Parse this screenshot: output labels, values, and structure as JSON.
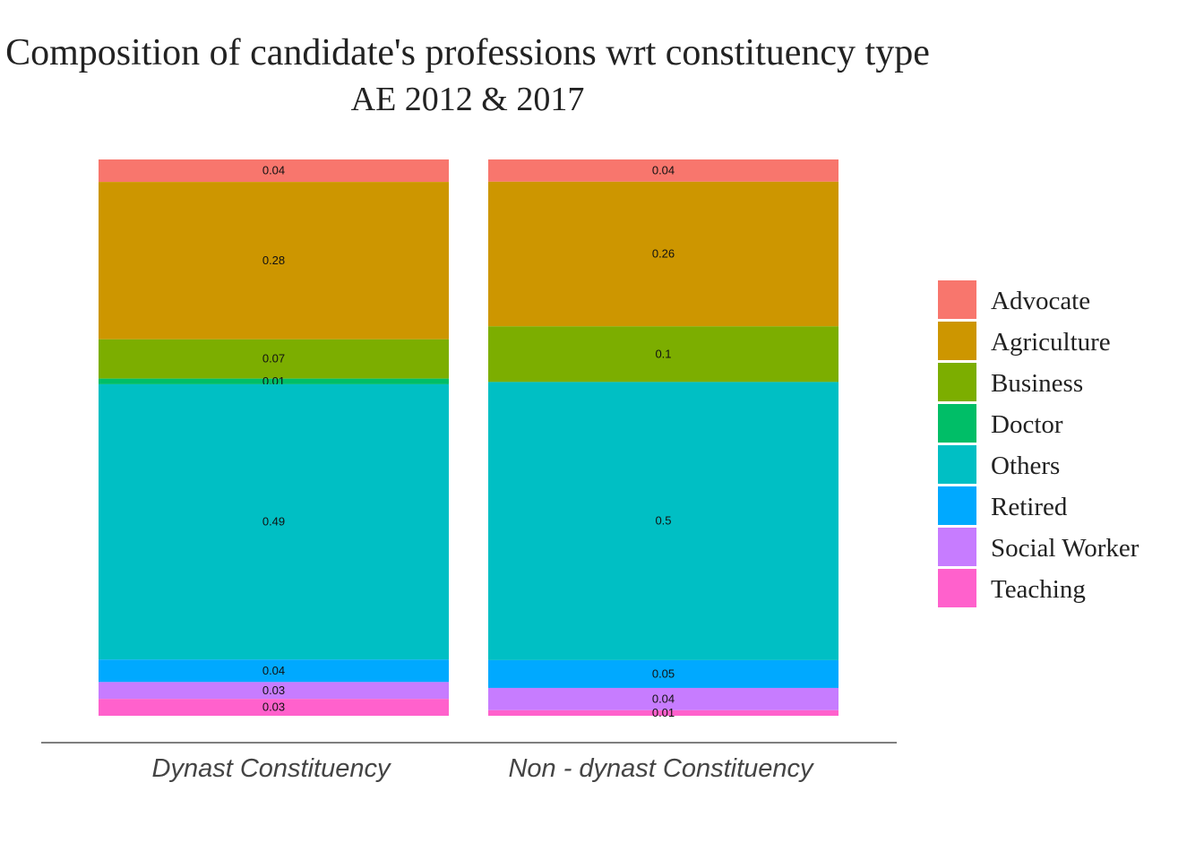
{
  "chart_data": {
    "type": "bar",
    "stacked": true,
    "title": "Composition of candidate's professions wrt constituency type",
    "subtitle": "AE 2012 & 2017",
    "xlabel": "",
    "ylabel": "",
    "ylim": [
      0,
      1
    ],
    "grid": false,
    "legend_position": "right",
    "categories": [
      "Dynast Constituency",
      "Non - dynast Constituency"
    ],
    "series": [
      {
        "name": "Advocate",
        "color": "#F8766D",
        "values": [
          0.04,
          0.04
        ],
        "labels": [
          "0.04",
          "0.04"
        ]
      },
      {
        "name": "Agriculture",
        "color": "#CD9600",
        "values": [
          0.28,
          0.26
        ],
        "labels": [
          "0.28",
          "0.26"
        ]
      },
      {
        "name": "Business",
        "color": "#7CAE00",
        "values": [
          0.07,
          0.1
        ],
        "labels": [
          "0.07",
          "0.1"
        ]
      },
      {
        "name": "Doctor",
        "color": "#00BE67",
        "values": [
          0.01,
          0.0
        ],
        "labels": [
          "0.01",
          ""
        ]
      },
      {
        "name": "Others",
        "color": "#00BFC4",
        "values": [
          0.49,
          0.5
        ],
        "labels": [
          "0.49",
          "0.5"
        ]
      },
      {
        "name": "Retired",
        "color": "#00A9FF",
        "values": [
          0.04,
          0.05
        ],
        "labels": [
          "0.04",
          "0.05"
        ]
      },
      {
        "name": "Social Worker",
        "color": "#C77CFF",
        "values": [
          0.03,
          0.04
        ],
        "labels": [
          "0.03",
          "0.04"
        ]
      },
      {
        "name": "Teaching",
        "color": "#FF61CC",
        "values": [
          0.03,
          0.01
        ],
        "labels": [
          "0.03",
          "0.01"
        ]
      }
    ]
  }
}
